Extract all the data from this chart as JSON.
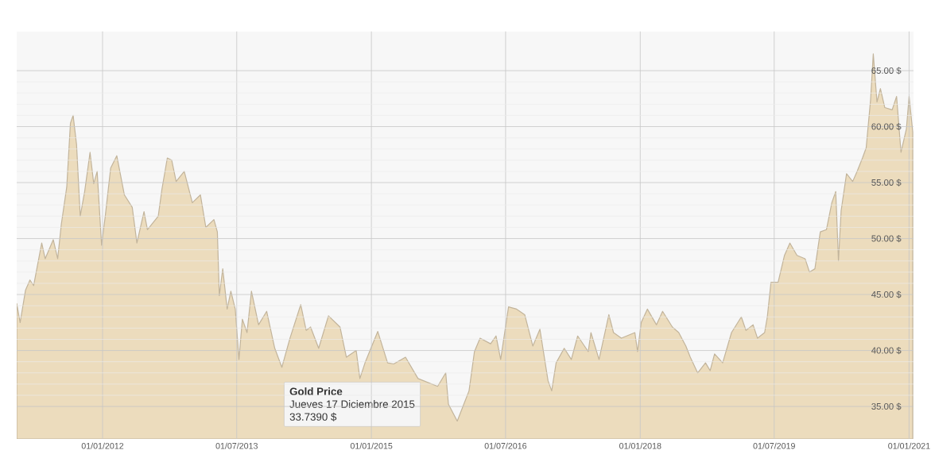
{
  "chart_data": {
    "type": "area",
    "x": [
      "2011-01-16",
      "2011-01-30",
      "2011-02-21",
      "2011-03-11",
      "2011-03-26",
      "2011-04-28",
      "2011-05-12",
      "2011-06-14",
      "2011-07-02",
      "2011-07-17",
      "2011-08-08",
      "2011-08-23",
      "2011-09-03",
      "2011-09-17",
      "2011-10-02",
      "2011-10-20",
      "2011-11-11",
      "2011-11-26",
      "2011-12-10",
      "2011-12-28",
      "2012-01-12",
      "2012-02-03",
      "2012-02-28",
      "2012-03-30",
      "2012-05-01",
      "2012-05-20",
      "2012-06-18",
      "2012-07-02",
      "2012-08-15",
      "2012-08-30",
      "2012-09-21",
      "2012-10-09",
      "2012-10-27",
      "2012-11-29",
      "2013-01-01",
      "2013-02-03",
      "2013-02-25",
      "2013-03-30",
      "2013-04-13",
      "2013-04-21",
      "2013-05-05",
      "2013-05-23",
      "2013-06-07",
      "2013-06-25",
      "2013-07-10",
      "2013-07-24",
      "2013-08-12",
      "2013-08-30",
      "2013-09-28",
      "2013-10-31",
      "2013-12-03",
      "2014-01-01",
      "2014-02-03",
      "2014-03-19",
      "2014-04-10",
      "2014-04-28",
      "2014-05-31",
      "2014-07-10",
      "2014-08-26",
      "2014-09-21",
      "2014-10-31",
      "2014-11-15",
      "2014-12-06",
      "2015-01-27",
      "2015-03-08",
      "2015-04-02",
      "2015-05-20",
      "2015-07-10",
      "2015-09-28",
      "2015-10-31",
      "2015-11-11",
      "2015-12-17",
      "2016-02-03",
      "2016-02-25",
      "2016-03-19",
      "2016-05-01",
      "2016-05-23",
      "2016-06-11",
      "2016-07-13",
      "2016-08-15",
      "2016-09-17",
      "2016-10-20",
      "2016-11-18",
      "2016-12-21",
      "2017-01-05",
      "2017-01-23",
      "2017-02-25",
      "2017-03-26",
      "2017-04-21",
      "2017-06-03",
      "2017-06-14",
      "2017-07-17",
      "2017-08-26",
      "2017-09-14",
      "2017-10-16",
      "2017-12-10",
      "2017-12-21",
      "2018-01-05",
      "2018-01-30",
      "2018-03-08",
      "2018-04-02",
      "2018-05-12",
      "2018-06-07",
      "2018-07-06",
      "2018-07-24",
      "2018-08-23",
      "2018-09-24",
      "2018-10-13",
      "2018-10-31",
      "2018-12-03",
      "2019-01-08",
      "2019-02-17",
      "2019-03-08",
      "2019-04-06",
      "2019-04-24",
      "2019-05-23",
      "2019-06-03",
      "2019-06-18",
      "2019-07-17",
      "2019-08-12",
      "2019-09-03",
      "2019-10-02",
      "2019-11-04",
      "2019-11-22",
      "2019-12-14",
      "2020-01-05",
      "2020-01-30",
      "2020-02-21",
      "2020-03-08",
      "2020-03-19",
      "2020-03-30",
      "2020-04-21",
      "2020-05-16",
      "2020-06-03",
      "2020-06-25",
      "2020-07-10",
      "2020-07-28",
      "2020-08-08",
      "2020-08-23",
      "2020-09-06",
      "2020-09-24",
      "2020-10-24",
      "2020-11-11",
      "2020-11-29",
      "2020-12-21",
      "2021-01-01",
      "2021-01-16"
    ],
    "series": [
      {
        "color": "#ecdcbd",
        "values": [
          44.2,
          42.5,
          45.4,
          46.3,
          45.8,
          49.6,
          48.2,
          49.9,
          48.2,
          51.3,
          54.6,
          60.3,
          61.0,
          58.4,
          52.0,
          54.2,
          57.7,
          54.9,
          56.0,
          49.4,
          52.0,
          56.3,
          57.4,
          53.9,
          52.8,
          49.6,
          52.4,
          50.8,
          52.0,
          54.4,
          57.2,
          57.0,
          55.1,
          56.0,
          53.2,
          53.9,
          51.0,
          51.7,
          50.6,
          44.9,
          47.3,
          43.7,
          45.3,
          43.7,
          39.2,
          42.8,
          41.6,
          45.3,
          42.3,
          43.5,
          40.2,
          38.5,
          41.1,
          44.1,
          41.8,
          42.1,
          40.2,
          43.1,
          42.1,
          39.4,
          40.0,
          37.5,
          38.9,
          41.7,
          38.9,
          38.8,
          39.4,
          37.5,
          36.8,
          38.0,
          35.2,
          33.7,
          36.4,
          39.9,
          41.1,
          40.6,
          41.3,
          39.2,
          43.9,
          43.7,
          43.2,
          40.4,
          41.9,
          37.3,
          36.4,
          38.9,
          40.2,
          39.2,
          41.3,
          39.9,
          41.6,
          39.2,
          43.2,
          41.6,
          41.1,
          41.6,
          39.9,
          42.5,
          43.7,
          42.3,
          43.5,
          42.1,
          41.6,
          40.4,
          39.4,
          38.0,
          38.9,
          38.2,
          39.7,
          38.9,
          41.6,
          43.0,
          41.8,
          42.3,
          41.1,
          41.6,
          43.0,
          46.1,
          46.1,
          48.5,
          49.6,
          48.5,
          48.2,
          47.0,
          47.3,
          50.6,
          50.8,
          53.2,
          54.2,
          48.0,
          52.5,
          55.8,
          55.1,
          56.0,
          57.2,
          58.1,
          62.4,
          66.5,
          62.2,
          63.4,
          61.7,
          61.5,
          62.7,
          57.7,
          59.8,
          62.7,
          59.5
        ]
      }
    ],
    "xlim": [
      "2011-01-16",
      "2021-01-19"
    ],
    "ylim": [
      32.1,
      68.5
    ],
    "xticks": [
      {
        "value": "2012-01-01",
        "label": "01/01/2012"
      },
      {
        "value": "2013-07-01",
        "label": "01/07/2013"
      },
      {
        "value": "2015-01-01",
        "label": "01/01/2015"
      },
      {
        "value": "2016-07-01",
        "label": "01/07/2016"
      },
      {
        "value": "2018-01-01",
        "label": "01/01/2018"
      },
      {
        "value": "2019-07-01",
        "label": "01/07/2019"
      },
      {
        "value": "2021-01-01",
        "label": "01/01/2021"
      }
    ],
    "yticks": [
      {
        "value": 35,
        "label": "35.00 $"
      },
      {
        "value": 40,
        "label": "40.00 $"
      },
      {
        "value": 45,
        "label": "45.00 $"
      },
      {
        "value": 50,
        "label": "50.00 $"
      },
      {
        "value": 55,
        "label": "55.00 $"
      },
      {
        "value": 60,
        "label": "60.00 $"
      },
      {
        "value": 65,
        "label": "65.00 $"
      }
    ],
    "grid": true,
    "annotations": [
      "Gold Price",
      "Jueves 17 Diciembre 2015",
      "33.7390 $"
    ]
  }
}
